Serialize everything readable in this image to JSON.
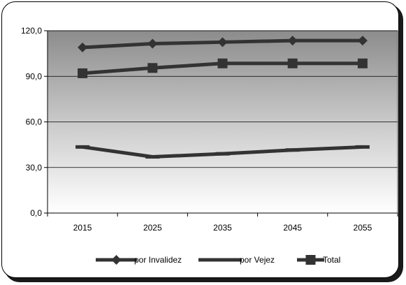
{
  "chart_data": {
    "type": "line",
    "categories": [
      "2015",
      "2025",
      "2035",
      "2045",
      "2055"
    ],
    "series": [
      {
        "name": "por Invalidez",
        "marker": "diamond",
        "color": "#333333",
        "values": [
          109.0,
          111.5,
          112.5,
          113.5,
          113.5
        ]
      },
      {
        "name": "por Vejez",
        "marker": "dash",
        "color": "#333333",
        "values": [
          43.5,
          37.0,
          39.0,
          41.5,
          43.5
        ]
      },
      {
        "name": "Total",
        "marker": "square",
        "color": "#333333",
        "values": [
          92.0,
          95.5,
          98.5,
          98.5,
          98.5
        ]
      }
    ],
    "y_ticks": [
      "0,0",
      "30,0",
      "60,0",
      "90,0",
      "120,0"
    ],
    "ylim": [
      0,
      120
    ],
    "grid": true,
    "legend_position": "bottom",
    "plot_background": "gradient gray (dark top to white bottom)"
  }
}
